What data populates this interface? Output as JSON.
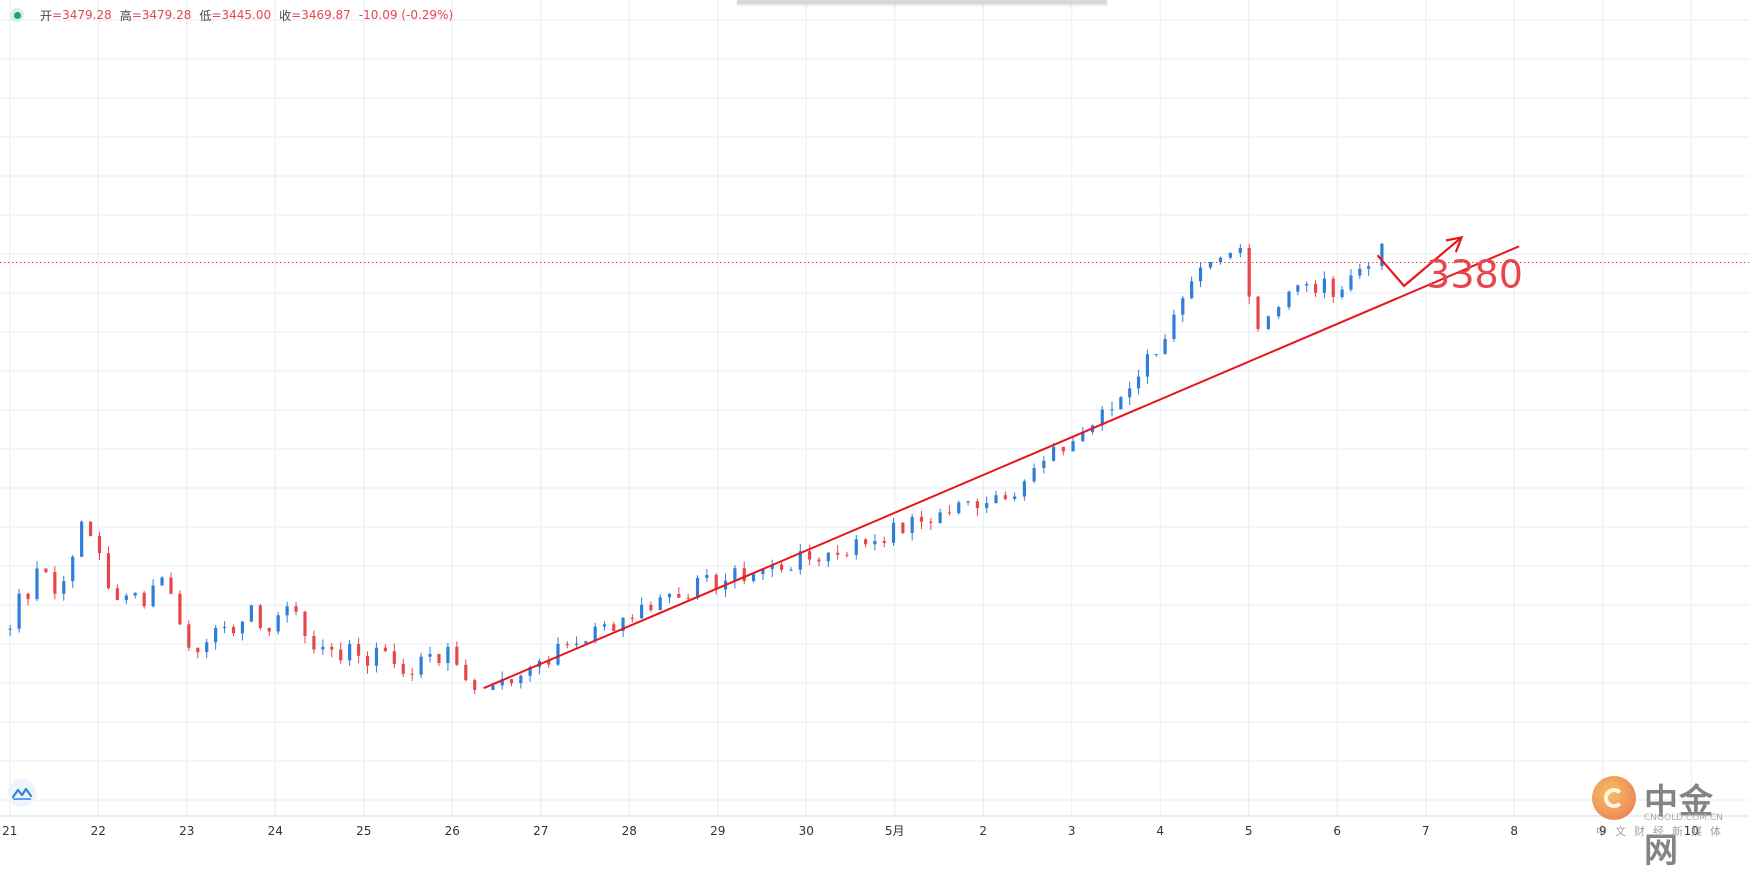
{
  "ohlc_bar": {
    "open_label": "开",
    "open_value": "=3479.28",
    "high_label": "高",
    "high_value": "=3479.28",
    "low_label": "低",
    "low_value": "=3445.00",
    "close_label": "收",
    "close_value": "=3469.87",
    "change": "-10.09 (-0.29%)"
  },
  "watermark": {
    "name": "中金网",
    "site": "CNGOLD.COM.CN",
    "slogan": "中文财经新媒体"
  },
  "chart_data": {
    "type": "candlestick",
    "x_tick_labels": [
      "21",
      "22",
      "23",
      "24",
      "25",
      "26",
      "27",
      "28",
      "29",
      "30",
      "5月",
      "2",
      "3",
      "4",
      "5",
      "6",
      "7",
      "8",
      "9",
      "10"
    ],
    "grid": true,
    "colors": {
      "up": "#2f7fd8",
      "down": "#e8464b",
      "annotation": "#e8161b",
      "grid": "#e6eef5"
    },
    "trend": [
      {
        "day": 25.9,
        "price": 3185
      },
      {
        "day": 28.0,
        "price": 3292
      },
      {
        "day": 29.9,
        "price": 3339
      },
      {
        "day": 31.9,
        "price": 3410
      },
      {
        "day": 33.0,
        "price": 3498
      },
      {
        "day": 33.6,
        "price": 3580
      },
      {
        "day": 34.0,
        "price": 3645
      },
      {
        "day": 34.45,
        "price": 3675
      },
      {
        "day": 34.65,
        "price": 3590
      },
      {
        "day": 35.0,
        "price": 3630
      },
      {
        "day": 35.6,
        "price": 3633
      },
      {
        "day": 35.9,
        "price": 3665
      },
      {
        "day": 36.05,
        "price": 3670
      }
    ],
    "start_candles": [
      3253,
      3292,
      3286,
      3320,
      3316,
      3292,
      3306,
      3333,
      3372,
      3356,
      3337,
      3298,
      3285,
      3290,
      3293,
      3278,
      3301,
      3310,
      3292,
      3258,
      3232,
      3227,
      3238,
      3254,
      3255,
      3248,
      3261,
      3279,
      3254,
      3250,
      3268,
      3278,
      3272,
      3245,
      3230,
      3233,
      3230,
      3218,
      3236,
      3223,
      3212,
      3232,
      3228,
      3214,
      3203,
      3202,
      3222,
      3225,
      3215,
      3233,
      3213,
      3196,
      3185
    ],
    "support_line": {
      "start": {
        "day": 25.9,
        "price": 3187
      },
      "end": {
        "day": 37.6,
        "price": 3678
      }
    },
    "annotation_path": [
      {
        "day": 36.0,
        "price": 3668
      },
      {
        "day": 36.3,
        "price": 3634
      },
      {
        "day": 36.95,
        "price": 3688
      }
    ],
    "annotation_label": {
      "text": "3380",
      "day": 36.55,
      "price": 3632
    },
    "current_price_line": 3660
  }
}
